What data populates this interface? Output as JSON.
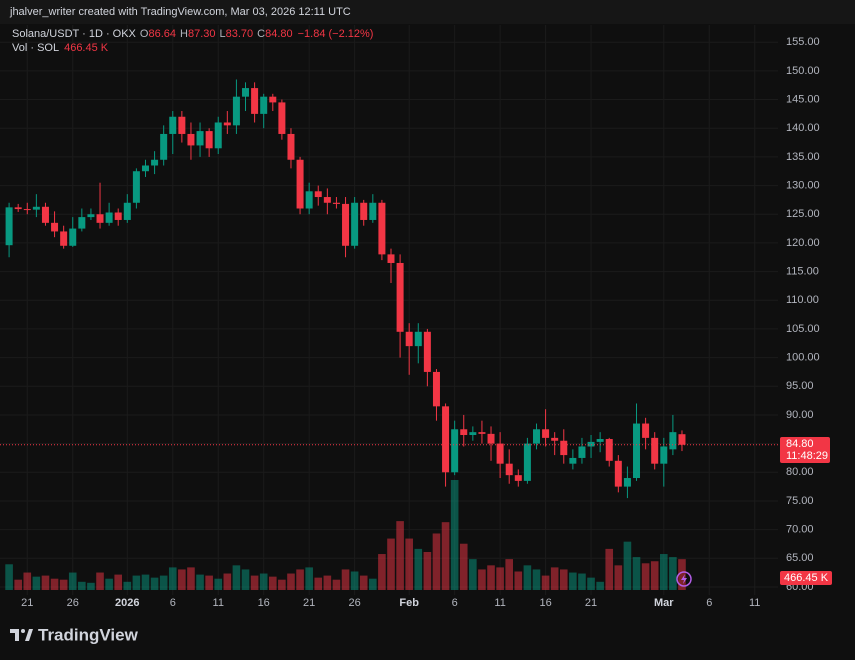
{
  "header": {
    "caption": "jhalver_writer created with TradingView.com, Mar 03, 2026 12:11 UTC"
  },
  "footer": {
    "brand": "TradingView"
  },
  "chart_data": {
    "type": "candlestick",
    "title": "Solana/USDT · 1D · OKX",
    "legend": {
      "open_prefix": "O",
      "open": "86.64",
      "high_prefix": "H",
      "high": "87.30",
      "low_prefix": "L",
      "low": "83.70",
      "close_prefix": "C",
      "close": "84.80",
      "change": "−1.84 (−2.12%)",
      "volume_name": "Vol · SOL",
      "volume": "466.45 K",
      "countdown": "11:48:29"
    },
    "up_color": "#089981",
    "down_color": "#f23645",
    "grid": true,
    "x": [
      "2025-12-19",
      "2025-12-20",
      "2025-12-21",
      "2025-12-22",
      "2025-12-23",
      "2025-12-24",
      "2025-12-25",
      "2025-12-26",
      "2025-12-27",
      "2025-12-28",
      "2025-12-29",
      "2025-12-30",
      "2025-12-31",
      "2026-01-01",
      "2026-01-02",
      "2026-01-03",
      "2026-01-04",
      "2026-01-05",
      "2026-01-06",
      "2026-01-07",
      "2026-01-08",
      "2026-01-09",
      "2026-01-10",
      "2026-01-11",
      "2026-01-12",
      "2026-01-13",
      "2026-01-14",
      "2026-01-15",
      "2026-01-16",
      "2026-01-17",
      "2026-01-18",
      "2026-01-19",
      "2026-01-20",
      "2026-01-21",
      "2026-01-22",
      "2026-01-23",
      "2026-01-24",
      "2026-01-25",
      "2026-01-26",
      "2026-01-27",
      "2026-01-28",
      "2026-01-29",
      "2026-01-30",
      "2026-01-31",
      "2026-02-01",
      "2026-02-02",
      "2026-02-03",
      "2026-02-04",
      "2026-02-05",
      "2026-02-06",
      "2026-02-07",
      "2026-02-08",
      "2026-02-09",
      "2026-02-10",
      "2026-02-11",
      "2026-02-12",
      "2026-02-13",
      "2026-02-14",
      "2026-02-15",
      "2026-02-16",
      "2026-02-17",
      "2026-02-18",
      "2026-02-19",
      "2026-02-20",
      "2026-02-21",
      "2026-02-22",
      "2026-02-23",
      "2026-02-24",
      "2026-02-25",
      "2026-02-26",
      "2026-02-27",
      "2026-02-28",
      "2026-03-01",
      "2026-03-02",
      "2026-03-03"
    ],
    "open": [
      119.6,
      126.2,
      125.9,
      125.8,
      126.3,
      123.5,
      122,
      119.5,
      122.5,
      124.5,
      125,
      123.5,
      125.3,
      124,
      127,
      132.5,
      133.5,
      134.5,
      139,
      142,
      139,
      137,
      139.5,
      136.5,
      141,
      140.5,
      145.5,
      147,
      142.5,
      145.5,
      144.5,
      139,
      134.5,
      126,
      129,
      128,
      127,
      126.8,
      119.5,
      127,
      124,
      127,
      118,
      116.5,
      104.5,
      102,
      104.5,
      97.5,
      91.5,
      80,
      87.5,
      86.5,
      87,
      86.7,
      85,
      81.5,
      79.5,
      78.5,
      85,
      87.5,
      86,
      85.5,
      81.5,
      82.5,
      84.5,
      85.3,
      85.8,
      82,
      77.5,
      79,
      88.5,
      86,
      81.5,
      84,
      86.64
    ],
    "high": [
      127,
      126.8,
      127,
      128.5,
      127,
      125.5,
      123,
      124.5,
      126,
      126,
      130.5,
      127,
      126,
      128.5,
      133,
      134.5,
      136,
      140.5,
      143,
      143,
      141,
      141,
      140,
      142,
      143,
      148.5,
      148,
      148,
      146,
      146,
      145,
      140,
      135,
      130.5,
      130,
      129.5,
      128,
      128,
      128,
      127.5,
      128.5,
      127.5,
      119,
      118,
      106,
      106,
      105,
      98,
      92,
      89,
      90,
      88,
      89,
      88,
      87,
      84,
      80.5,
      86,
      88.5,
      91,
      87,
      87.5,
      84,
      86,
      86.5,
      87,
      86,
      83,
      81,
      92,
      89.5,
      87,
      86,
      90,
      87.3
    ],
    "low": [
      117.5,
      125.4,
      125,
      124.5,
      123,
      121,
      119,
      119.3,
      122,
      124,
      122.5,
      123,
      123,
      123.5,
      126,
      131.5,
      132,
      133.5,
      135.5,
      137.5,
      134.5,
      135,
      135,
      135.5,
      139,
      139,
      143,
      141,
      140,
      143,
      138,
      133,
      125,
      125,
      126.5,
      125,
      126,
      117.5,
      119,
      123,
      123.5,
      117,
      113,
      100,
      97,
      99,
      95,
      89,
      77.5,
      79.5,
      84.5,
      85.5,
      85,
      82,
      79,
      78,
      77.5,
      78,
      84,
      84.5,
      83,
      81.5,
      80.5,
      81.5,
      82.5,
      83.5,
      81,
      76.5,
      75.5,
      78.5,
      84,
      80.5,
      77.5,
      83,
      83.7
    ],
    "close": [
      126.2,
      125.9,
      125.8,
      126.3,
      123.5,
      122,
      119.5,
      122.5,
      124.5,
      125,
      123.5,
      125.3,
      124,
      127,
      132.5,
      133.5,
      134.5,
      139,
      142,
      139,
      137,
      139.5,
      136.5,
      141,
      140.5,
      145.5,
      147,
      142.5,
      145.5,
      144.5,
      139,
      134.5,
      126,
      129,
      128,
      127,
      126.8,
      119.5,
      127,
      124,
      127,
      118,
      116.5,
      104.5,
      102,
      104.5,
      97.5,
      91.5,
      80,
      87.5,
      86.5,
      87,
      86.7,
      85,
      81.5,
      79.5,
      78.5,
      85,
      87.5,
      86,
      85.5,
      83,
      82.5,
      84.5,
      85.3,
      85.8,
      82,
      77.5,
      79,
      88.5,
      86,
      81.5,
      84.5,
      87,
      84.8
    ],
    "volume": [
      389,
      156,
      264,
      202,
      218,
      171,
      156,
      264,
      124,
      109,
      264,
      171,
      233,
      124,
      218,
      233,
      187,
      218,
      342,
      311,
      342,
      233,
      218,
      171,
      249,
      373,
      311,
      218,
      249,
      202,
      156,
      249,
      311,
      342,
      187,
      218,
      156,
      311,
      280,
      218,
      171,
      544,
      778,
      1042,
      778,
      622,
      575,
      855,
      1026,
      1664,
      700,
      467,
      311,
      373,
      342,
      467,
      280,
      373,
      311,
      218,
      342,
      311,
      264,
      249,
      187,
      124,
      622,
      373,
      731,
      498,
      404,
      435,
      544,
      498,
      466.45
    ],
    "xlim": [
      "2025-12-18",
      "2026-03-14"
    ],
    "xticks": [
      {
        "value": "2025-12-21",
        "label": "21"
      },
      {
        "value": "2025-12-26",
        "label": "26"
      },
      {
        "value": "2026-01-01",
        "label": "2026"
      },
      {
        "value": "2026-01-06",
        "label": "6"
      },
      {
        "value": "2026-01-11",
        "label": "11"
      },
      {
        "value": "2026-01-16",
        "label": "16"
      },
      {
        "value": "2026-01-21",
        "label": "21"
      },
      {
        "value": "2026-01-26",
        "label": "26"
      },
      {
        "value": "2026-02-01",
        "label": "Feb"
      },
      {
        "value": "2026-02-06",
        "label": "6"
      },
      {
        "value": "2026-02-11",
        "label": "11"
      },
      {
        "value": "2026-02-16",
        "label": "16"
      },
      {
        "value": "2026-02-21",
        "label": "21"
      },
      {
        "value": "2026-03-01",
        "label": "Mar"
      },
      {
        "value": "2026-03-06",
        "label": "6"
      },
      {
        "value": "2026-03-11",
        "label": "11"
      }
    ],
    "ylim": [
      58.6,
      158
    ],
    "yticks": [
      {
        "value": 60,
        "label": "60.00"
      },
      {
        "value": 65,
        "label": "65.00"
      },
      {
        "value": 70,
        "label": "70.00"
      },
      {
        "value": 75,
        "label": "75.00"
      },
      {
        "value": 80,
        "label": "80.00"
      },
      {
        "value": 85,
        "label": "85.00"
      },
      {
        "value": 90,
        "label": "90.00"
      },
      {
        "value": 95,
        "label": "95.00"
      },
      {
        "value": 100,
        "label": "100.00"
      },
      {
        "value": 105,
        "label": "105.00"
      },
      {
        "value": 110,
        "label": "110.00"
      },
      {
        "value": 115,
        "label": "115.00"
      },
      {
        "value": 120,
        "label": "120.00"
      },
      {
        "value": 125,
        "label": "125.00"
      },
      {
        "value": 130,
        "label": "130.00"
      },
      {
        "value": 135,
        "label": "135.00"
      },
      {
        "value": 140,
        "label": "140.00"
      },
      {
        "value": 145,
        "label": "145.00"
      },
      {
        "value": 150,
        "label": "150.00"
      },
      {
        "value": 155,
        "label": "155.00"
      }
    ]
  }
}
